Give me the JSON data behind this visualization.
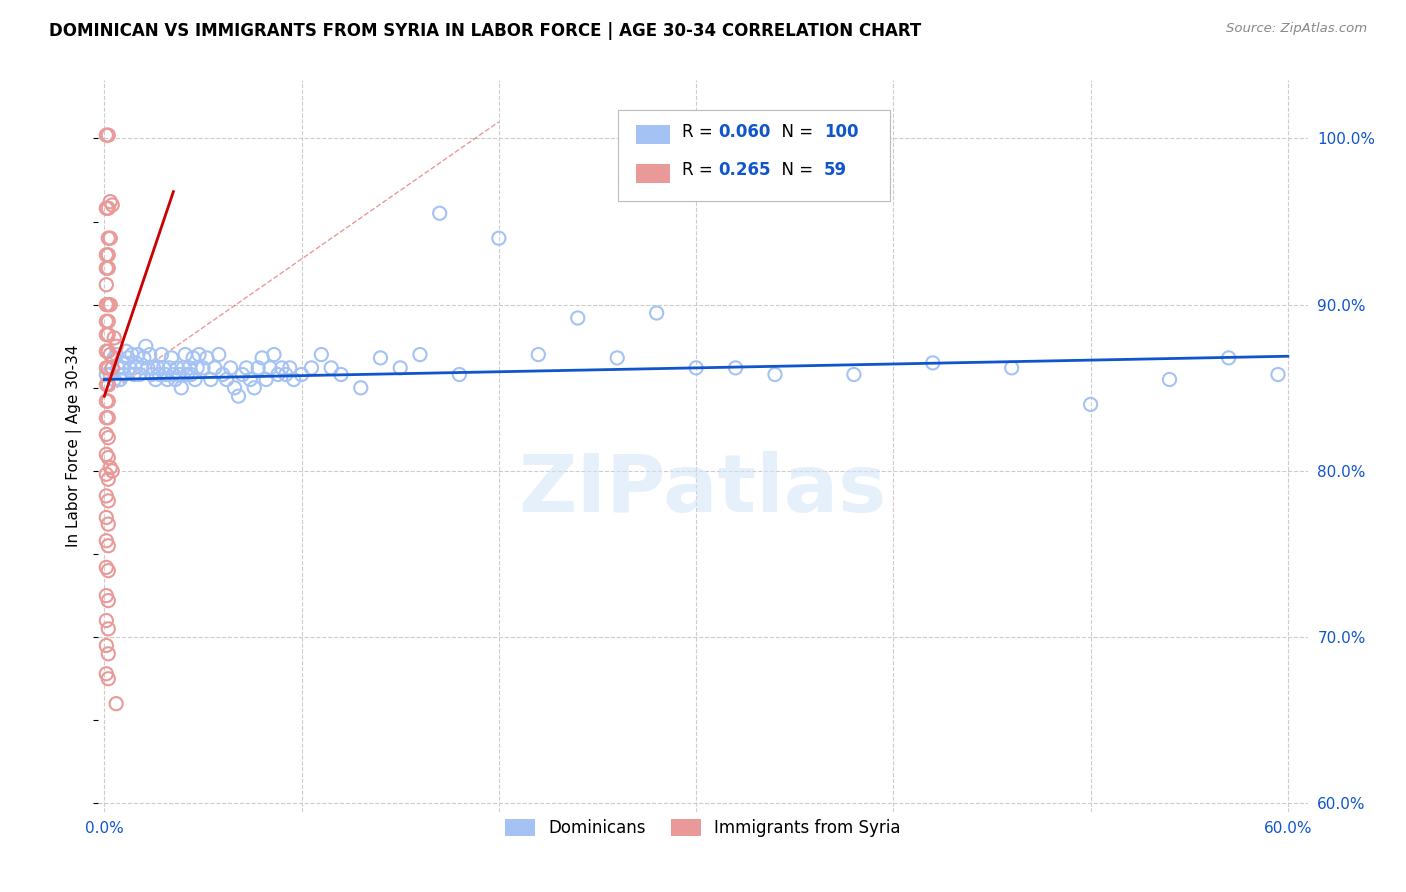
{
  "title": "DOMINICAN VS IMMIGRANTS FROM SYRIA IN LABOR FORCE | AGE 30-34 CORRELATION CHART",
  "source": "Source: ZipAtlas.com",
  "ylabel": "In Labor Force | Age 30-34",
  "xlim": [
    -0.003,
    0.61
  ],
  "ylim": [
    0.595,
    1.035
  ],
  "xticks": [
    0.0,
    0.1,
    0.2,
    0.3,
    0.4,
    0.5,
    0.6
  ],
  "xticklabels": [
    "0.0%",
    "",
    "",
    "",
    "",
    "",
    "60.0%"
  ],
  "yticks_right": [
    0.6,
    0.7,
    0.8,
    0.9,
    1.0
  ],
  "yticklabels_right": [
    "60.0%",
    "70.0%",
    "80.0%",
    "90.0%",
    "100.0%"
  ],
  "blue_color": "#a4c2f4",
  "pink_color": "#ea9999",
  "blue_line_color": "#1155cc",
  "pink_line_color": "#cc0000",
  "watermark": "ZIPatlas",
  "r_blue": 0.06,
  "n_blue": 100,
  "r_pink": 0.265,
  "n_pink": 59,
  "blue_dots": [
    [
      0.001,
      0.858
    ],
    [
      0.002,
      0.852
    ],
    [
      0.003,
      0.858
    ],
    [
      0.004,
      0.862
    ],
    [
      0.005,
      0.868
    ],
    [
      0.005,
      0.855
    ],
    [
      0.006,
      0.87
    ],
    [
      0.007,
      0.862
    ],
    [
      0.008,
      0.855
    ],
    [
      0.009,
      0.862
    ],
    [
      0.01,
      0.858
    ],
    [
      0.01,
      0.865
    ],
    [
      0.011,
      0.872
    ],
    [
      0.012,
      0.868
    ],
    [
      0.013,
      0.862
    ],
    [
      0.014,
      0.87
    ],
    [
      0.015,
      0.858
    ],
    [
      0.016,
      0.865
    ],
    [
      0.017,
      0.87
    ],
    [
      0.018,
      0.858
    ],
    [
      0.019,
      0.862
    ],
    [
      0.02,
      0.868
    ],
    [
      0.021,
      0.875
    ],
    [
      0.022,
      0.862
    ],
    [
      0.023,
      0.87
    ],
    [
      0.024,
      0.858
    ],
    [
      0.025,
      0.862
    ],
    [
      0.026,
      0.855
    ],
    [
      0.027,
      0.862
    ],
    [
      0.028,
      0.858
    ],
    [
      0.029,
      0.87
    ],
    [
      0.03,
      0.862
    ],
    [
      0.031,
      0.858
    ],
    [
      0.032,
      0.855
    ],
    [
      0.033,
      0.862
    ],
    [
      0.034,
      0.868
    ],
    [
      0.035,
      0.858
    ],
    [
      0.036,
      0.855
    ],
    [
      0.037,
      0.862
    ],
    [
      0.038,
      0.858
    ],
    [
      0.039,
      0.85
    ],
    [
      0.04,
      0.862
    ],
    [
      0.041,
      0.87
    ],
    [
      0.042,
      0.858
    ],
    [
      0.043,
      0.862
    ],
    [
      0.044,
      0.858
    ],
    [
      0.045,
      0.868
    ],
    [
      0.046,
      0.855
    ],
    [
      0.047,
      0.862
    ],
    [
      0.048,
      0.87
    ],
    [
      0.05,
      0.862
    ],
    [
      0.052,
      0.868
    ],
    [
      0.054,
      0.855
    ],
    [
      0.056,
      0.862
    ],
    [
      0.058,
      0.87
    ],
    [
      0.06,
      0.858
    ],
    [
      0.062,
      0.855
    ],
    [
      0.064,
      0.862
    ],
    [
      0.066,
      0.85
    ],
    [
      0.068,
      0.845
    ],
    [
      0.07,
      0.858
    ],
    [
      0.072,
      0.862
    ],
    [
      0.074,
      0.855
    ],
    [
      0.076,
      0.85
    ],
    [
      0.078,
      0.862
    ],
    [
      0.08,
      0.868
    ],
    [
      0.082,
      0.855
    ],
    [
      0.084,
      0.862
    ],
    [
      0.086,
      0.87
    ],
    [
      0.088,
      0.858
    ],
    [
      0.09,
      0.862
    ],
    [
      0.092,
      0.858
    ],
    [
      0.094,
      0.862
    ],
    [
      0.096,
      0.855
    ],
    [
      0.1,
      0.858
    ],
    [
      0.105,
      0.862
    ],
    [
      0.11,
      0.87
    ],
    [
      0.115,
      0.862
    ],
    [
      0.12,
      0.858
    ],
    [
      0.13,
      0.85
    ],
    [
      0.14,
      0.868
    ],
    [
      0.15,
      0.862
    ],
    [
      0.16,
      0.87
    ],
    [
      0.17,
      0.955
    ],
    [
      0.18,
      0.858
    ],
    [
      0.2,
      0.94
    ],
    [
      0.22,
      0.87
    ],
    [
      0.24,
      0.892
    ],
    [
      0.26,
      0.868
    ],
    [
      0.28,
      0.895
    ],
    [
      0.3,
      0.862
    ],
    [
      0.32,
      0.862
    ],
    [
      0.34,
      0.858
    ],
    [
      0.38,
      0.858
    ],
    [
      0.42,
      0.865
    ],
    [
      0.46,
      0.862
    ],
    [
      0.5,
      0.84
    ],
    [
      0.54,
      0.855
    ],
    [
      0.57,
      0.868
    ],
    [
      0.595,
      0.858
    ]
  ],
  "pink_dots": [
    [
      0.001,
      1.002
    ],
    [
      0.002,
      1.002
    ],
    [
      0.001,
      0.958
    ],
    [
      0.002,
      0.958
    ],
    [
      0.002,
      0.94
    ],
    [
      0.003,
      0.94
    ],
    [
      0.001,
      0.93
    ],
    [
      0.002,
      0.93
    ],
    [
      0.001,
      0.922
    ],
    [
      0.002,
      0.922
    ],
    [
      0.001,
      0.912
    ],
    [
      0.001,
      0.9
    ],
    [
      0.002,
      0.9
    ],
    [
      0.003,
      0.9
    ],
    [
      0.001,
      0.89
    ],
    [
      0.002,
      0.89
    ],
    [
      0.001,
      0.882
    ],
    [
      0.002,
      0.882
    ],
    [
      0.001,
      0.872
    ],
    [
      0.002,
      0.872
    ],
    [
      0.001,
      0.862
    ],
    [
      0.002,
      0.862
    ],
    [
      0.001,
      0.852
    ],
    [
      0.002,
      0.852
    ],
    [
      0.001,
      0.842
    ],
    [
      0.002,
      0.842
    ],
    [
      0.001,
      0.832
    ],
    [
      0.002,
      0.832
    ],
    [
      0.001,
      0.822
    ],
    [
      0.002,
      0.82
    ],
    [
      0.001,
      0.81
    ],
    [
      0.002,
      0.808
    ],
    [
      0.001,
      0.798
    ],
    [
      0.002,
      0.795
    ],
    [
      0.001,
      0.785
    ],
    [
      0.002,
      0.782
    ],
    [
      0.001,
      0.772
    ],
    [
      0.002,
      0.768
    ],
    [
      0.001,
      0.758
    ],
    [
      0.002,
      0.755
    ],
    [
      0.001,
      0.742
    ],
    [
      0.002,
      0.74
    ],
    [
      0.001,
      0.725
    ],
    [
      0.002,
      0.722
    ],
    [
      0.001,
      0.71
    ],
    [
      0.002,
      0.705
    ],
    [
      0.001,
      0.695
    ],
    [
      0.002,
      0.69
    ],
    [
      0.001,
      0.678
    ],
    [
      0.002,
      0.675
    ],
    [
      0.003,
      0.962
    ],
    [
      0.004,
      0.96
    ],
    [
      0.003,
      0.87
    ],
    [
      0.004,
      0.862
    ],
    [
      0.003,
      0.802
    ],
    [
      0.004,
      0.8
    ],
    [
      0.005,
      0.88
    ],
    [
      0.006,
      0.875
    ],
    [
      0.006,
      0.66
    ]
  ]
}
